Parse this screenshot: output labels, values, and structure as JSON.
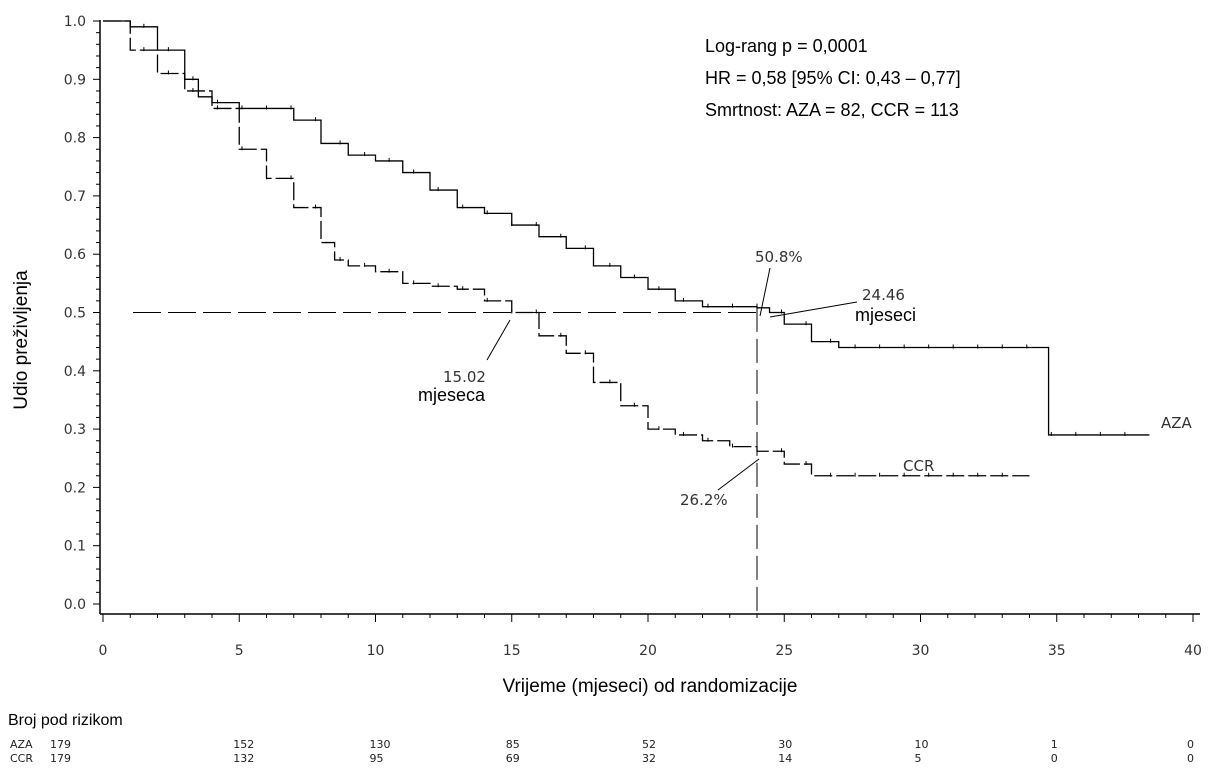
{
  "chart_data": {
    "type": "line",
    "xlabel": "Vrijeme (mjeseci) od randomizacije",
    "ylabel": "Udio preživljenja",
    "xlim": [
      0,
      40
    ],
    "ylim": [
      0.0,
      1.0
    ],
    "x_ticks": [
      "0",
      "5",
      "10",
      "15",
      "20",
      "25",
      "30",
      "35",
      "40"
    ],
    "y_ticks": [
      "0.0",
      "0.1",
      "0.2",
      "0.3",
      "0.4",
      "0.5",
      "0.6",
      "0.7",
      "0.8",
      "0.9",
      "1.0"
    ],
    "stats": [
      "Log-rang p = 0,0001",
      "HR = 0,58 [95% CI: 0,43 – 0,77]",
      "Smrtnost: AZA = 82, CCR = 113"
    ],
    "series": [
      {
        "name": "AZA",
        "color": "#000000",
        "style": "solid",
        "x": [
          0,
          1,
          2,
          3,
          3.5,
          4,
          5,
          6,
          7,
          8,
          9,
          10,
          11,
          12,
          13,
          14,
          15,
          16,
          17,
          18,
          19,
          20,
          21,
          22,
          23,
          24,
          24.46,
          25,
          26,
          27,
          30,
          34.7,
          34.7,
          38.4
        ],
        "y": [
          1.0,
          0.99,
          0.95,
          0.9,
          0.87,
          0.86,
          0.85,
          0.85,
          0.83,
          0.79,
          0.77,
          0.76,
          0.74,
          0.71,
          0.68,
          0.67,
          0.65,
          0.63,
          0.61,
          0.58,
          0.56,
          0.54,
          0.52,
          0.51,
          0.51,
          0.508,
          0.5,
          0.48,
          0.45,
          0.44,
          0.44,
          0.44,
          0.29,
          0.29
        ]
      },
      {
        "name": "CCR",
        "color": "#000000",
        "style": "dashed",
        "x": [
          0,
          1,
          2,
          3,
          4,
          5,
          6,
          7,
          8,
          8.5,
          9,
          10,
          11,
          12,
          13,
          14,
          15,
          16,
          17,
          18,
          19,
          20,
          21,
          22,
          23,
          24,
          25,
          26,
          30,
          34
        ],
        "y": [
          1.0,
          0.95,
          0.91,
          0.88,
          0.85,
          0.78,
          0.73,
          0.68,
          0.62,
          0.59,
          0.58,
          0.57,
          0.55,
          0.545,
          0.54,
          0.52,
          0.5,
          0.46,
          0.43,
          0.38,
          0.34,
          0.3,
          0.29,
          0.28,
          0.27,
          0.262,
          0.24,
          0.22,
          0.22,
          0.22
        ]
      }
    ],
    "annotations": {
      "median_ccr_value": "15.02",
      "median_ccr_unit": "mjeseca",
      "median_aza_value": "24.46",
      "median_aza_unit": "mjeseci",
      "aza_at_24": "50.8%",
      "ccr_at_24": "26.2%"
    },
    "risk_table": {
      "title": "Broj pod rizikom",
      "times": [
        0,
        5,
        10,
        15,
        20,
        25,
        30,
        35,
        40
      ],
      "rows": [
        {
          "label": "AZA",
          "values": [
            "179",
            "152",
            "130",
            "85",
            "52",
            "30",
            "10",
            "1",
            "0"
          ]
        },
        {
          "label": "CCR",
          "values": [
            "179",
            "132",
            "95",
            "69",
            "32",
            "14",
            "5",
            "0",
            "0"
          ]
        }
      ]
    }
  }
}
